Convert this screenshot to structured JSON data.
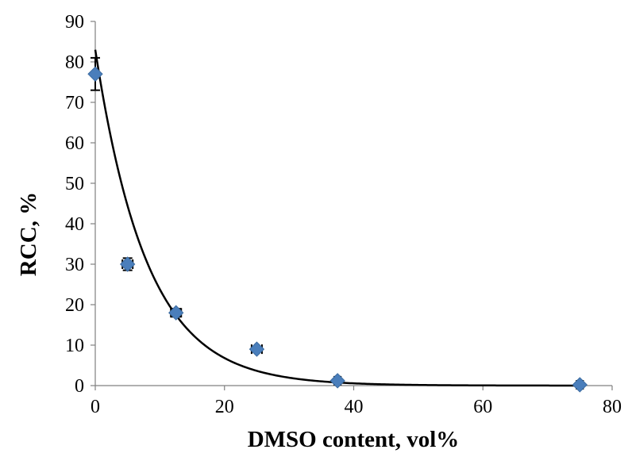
{
  "chart_data": {
    "type": "scatter",
    "title": "",
    "xlabel": "DMSO content, vol%",
    "ylabel": "RCC, %",
    "xlim": [
      0,
      80
    ],
    "ylim": [
      0,
      90
    ],
    "x_ticks": [
      "0",
      "20",
      "40",
      "60",
      "80"
    ],
    "y_ticks": [
      "0",
      "10",
      "20",
      "30",
      "40",
      "50",
      "60",
      "70",
      "80",
      "90"
    ],
    "grid": false,
    "legend": "none",
    "marker_color": "#4a7ebb",
    "fit_color": "#000000",
    "series": [
      {
        "marker": "diamond",
        "points": [
          {
            "x": 0,
            "y": 77,
            "y_err": 4,
            "x_err": 0
          },
          {
            "x": 5,
            "y": 30,
            "y_err": 1.5,
            "x_err": 0.8
          },
          {
            "x": 12.5,
            "y": 18,
            "y_err": 1,
            "x_err": 0.8
          },
          {
            "x": 25,
            "y": 9,
            "y_err": 0.5,
            "x_err": 0.8
          },
          {
            "x": 37.5,
            "y": 1.2,
            "y_err": 0.3,
            "x_err": 0.5
          },
          {
            "x": 75,
            "y": 0.2,
            "y_err": 0.1,
            "x_err": 0.5
          }
        ]
      }
    ],
    "fit": {
      "type": "exponential",
      "a": 83,
      "b": -0.125
    }
  }
}
